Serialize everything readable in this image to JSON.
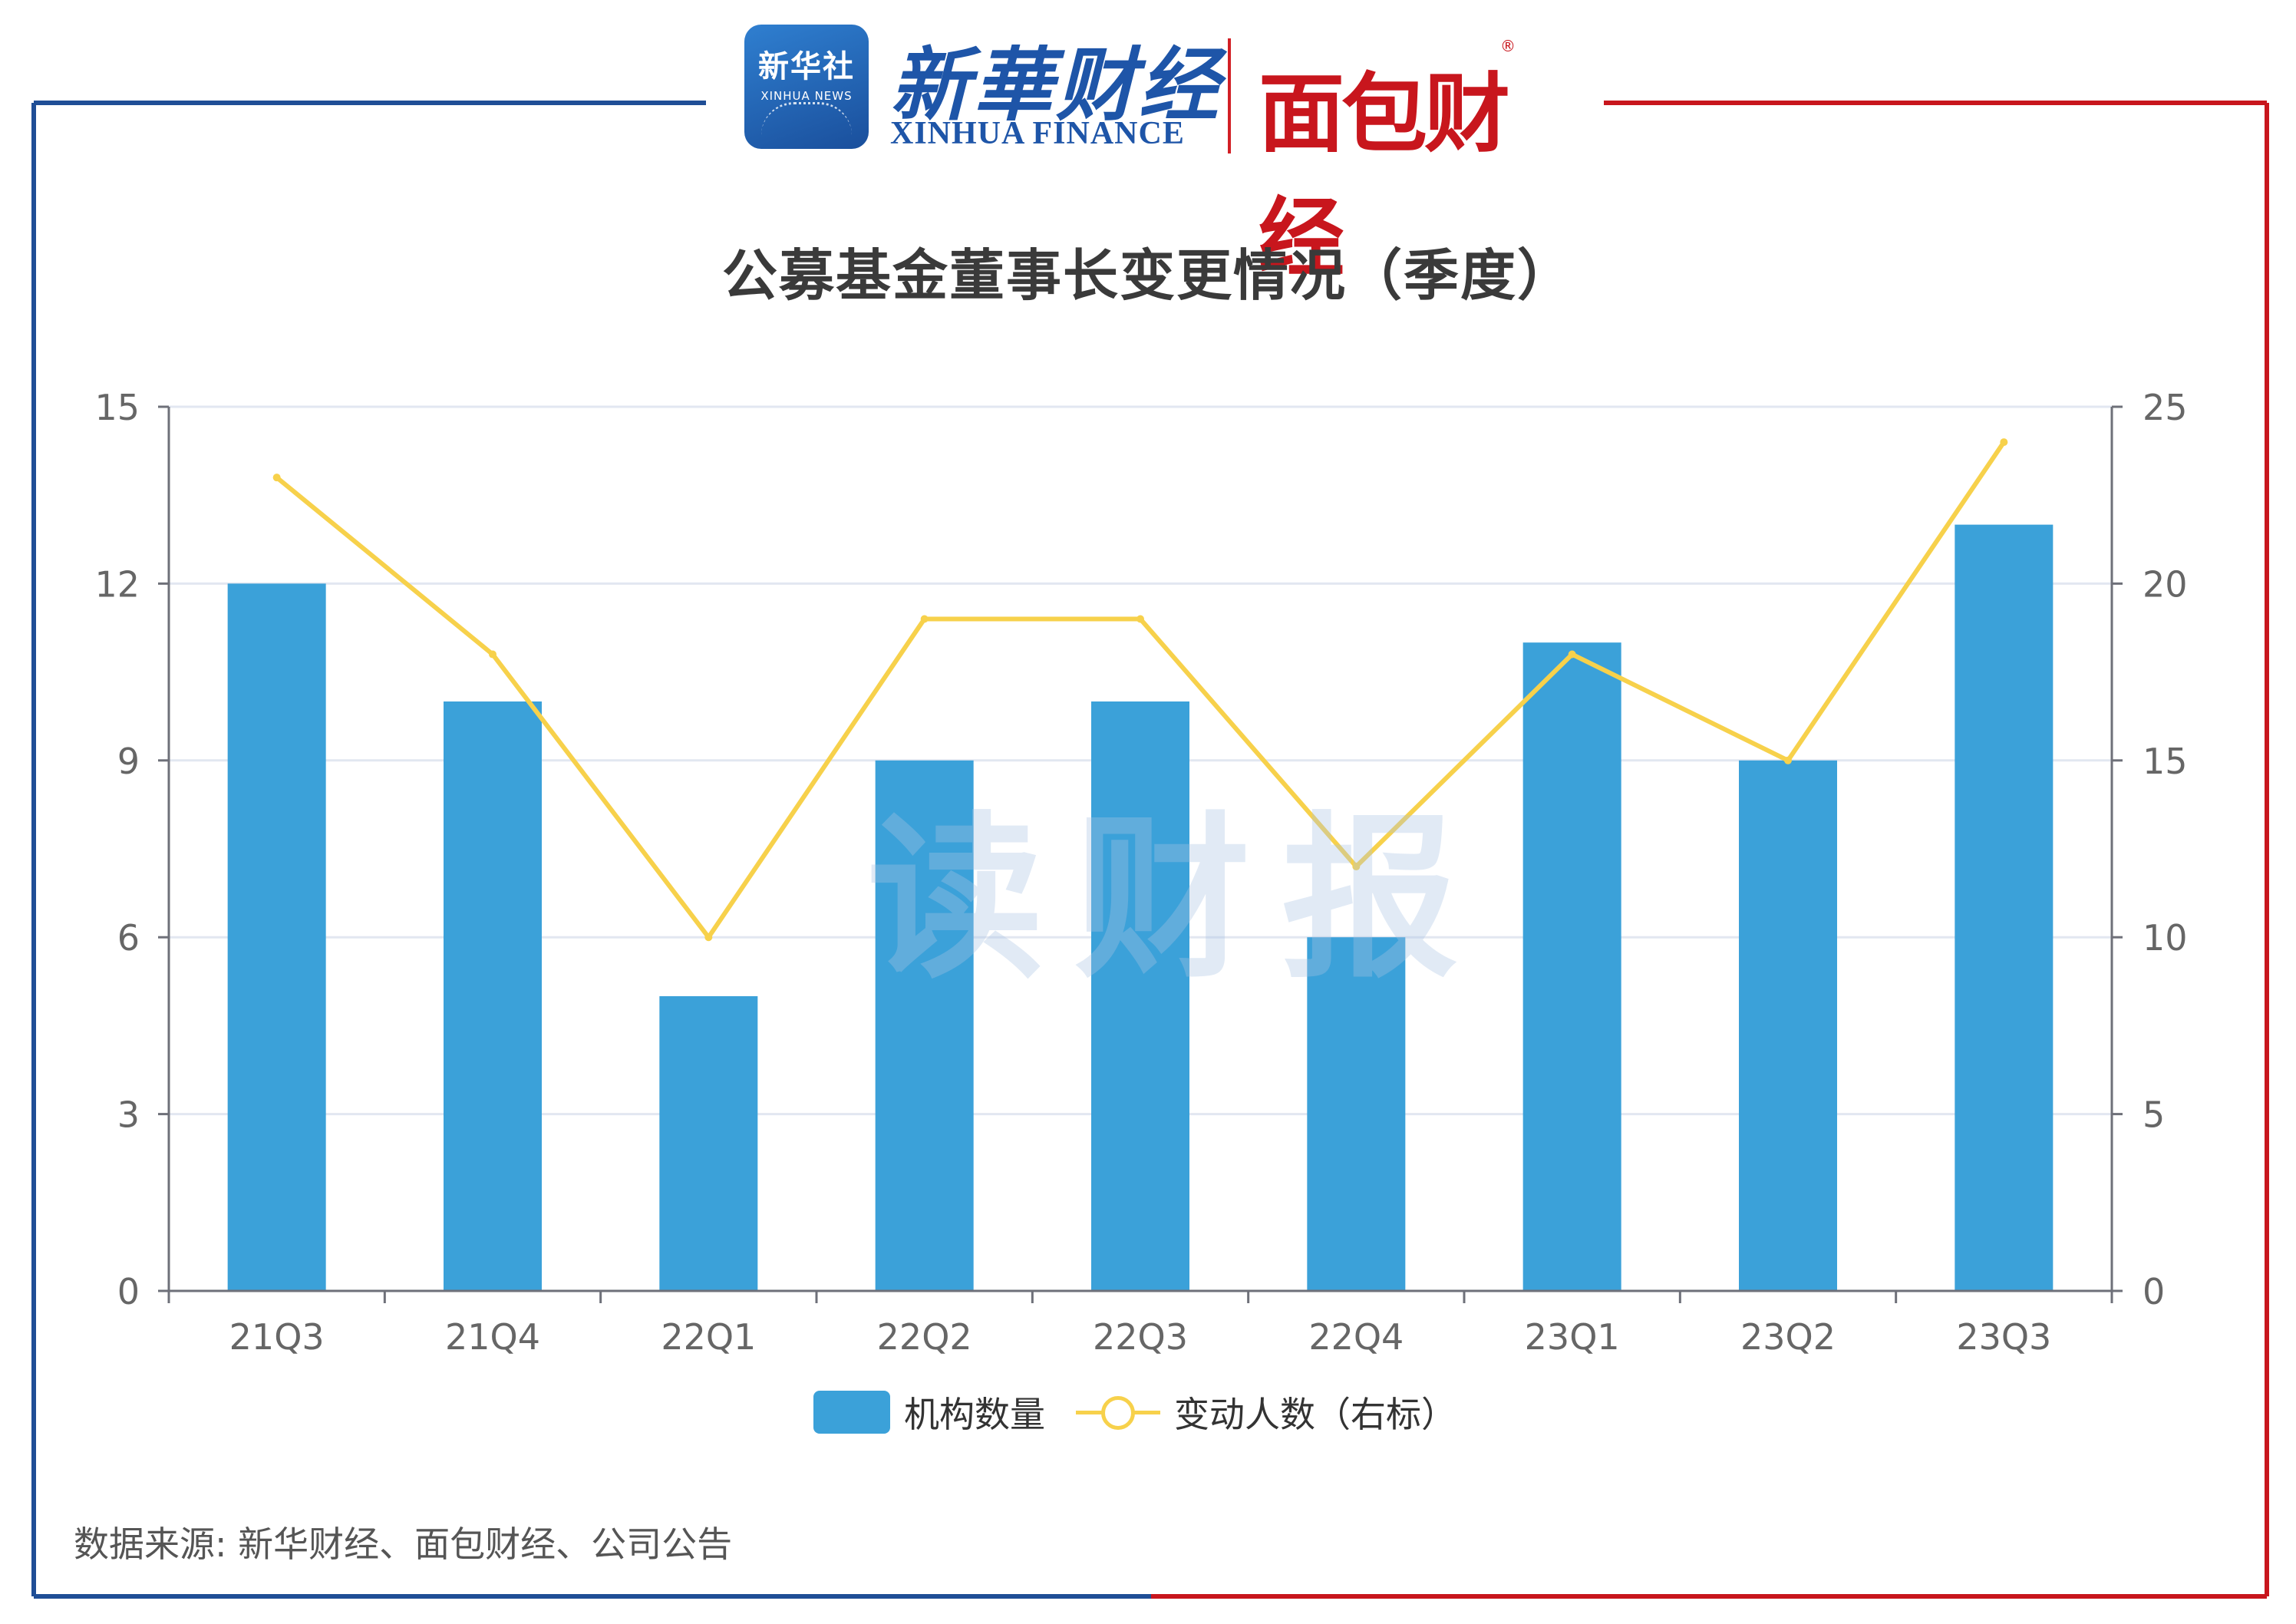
{
  "header": {
    "xinhua_badge_cn": "新华社",
    "xinhua_badge_en": "XINHUA NEWS",
    "xinhua_finance_cn": "新華财经",
    "xinhua_finance_en": "XINHUA FINANCE",
    "mianbao_logo": "面包财经",
    "reg_mark": "®"
  },
  "watermark": "读财报",
  "source": "数据来源: 新华财经、面包财经、公司公告",
  "colors": {
    "frame_left": "#1f4e96",
    "frame_right": "#c8161d",
    "bar": "#3ba1d9",
    "line": "#f7d14b",
    "grid": "#e2e7f1",
    "axis": "#6e7079",
    "tick_text": "#666666"
  },
  "chart_data": {
    "type": "bar",
    "title": "公募基金董事长变更情况（季度）",
    "categories": [
      "21Q3",
      "21Q4",
      "22Q1",
      "22Q2",
      "22Q3",
      "22Q4",
      "23Q1",
      "23Q2",
      "23Q3"
    ],
    "series": [
      {
        "name": "机构数量",
        "type": "bar",
        "axis": "left",
        "values": [
          12,
          10,
          5,
          9,
          10,
          6,
          11,
          9,
          13
        ]
      },
      {
        "name": "变动人数（右标）",
        "type": "line",
        "axis": "right",
        "values": [
          23,
          18,
          10,
          19,
          19,
          12,
          18,
          15,
          24
        ]
      }
    ],
    "y_left": {
      "min": 0,
      "max": 15,
      "ticks": [
        0,
        3,
        6,
        9,
        12,
        15
      ]
    },
    "y_right": {
      "min": 0,
      "max": 25,
      "ticks": [
        0,
        5,
        10,
        15,
        20,
        25
      ]
    },
    "grid": true,
    "legend_position": "bottom-center"
  }
}
